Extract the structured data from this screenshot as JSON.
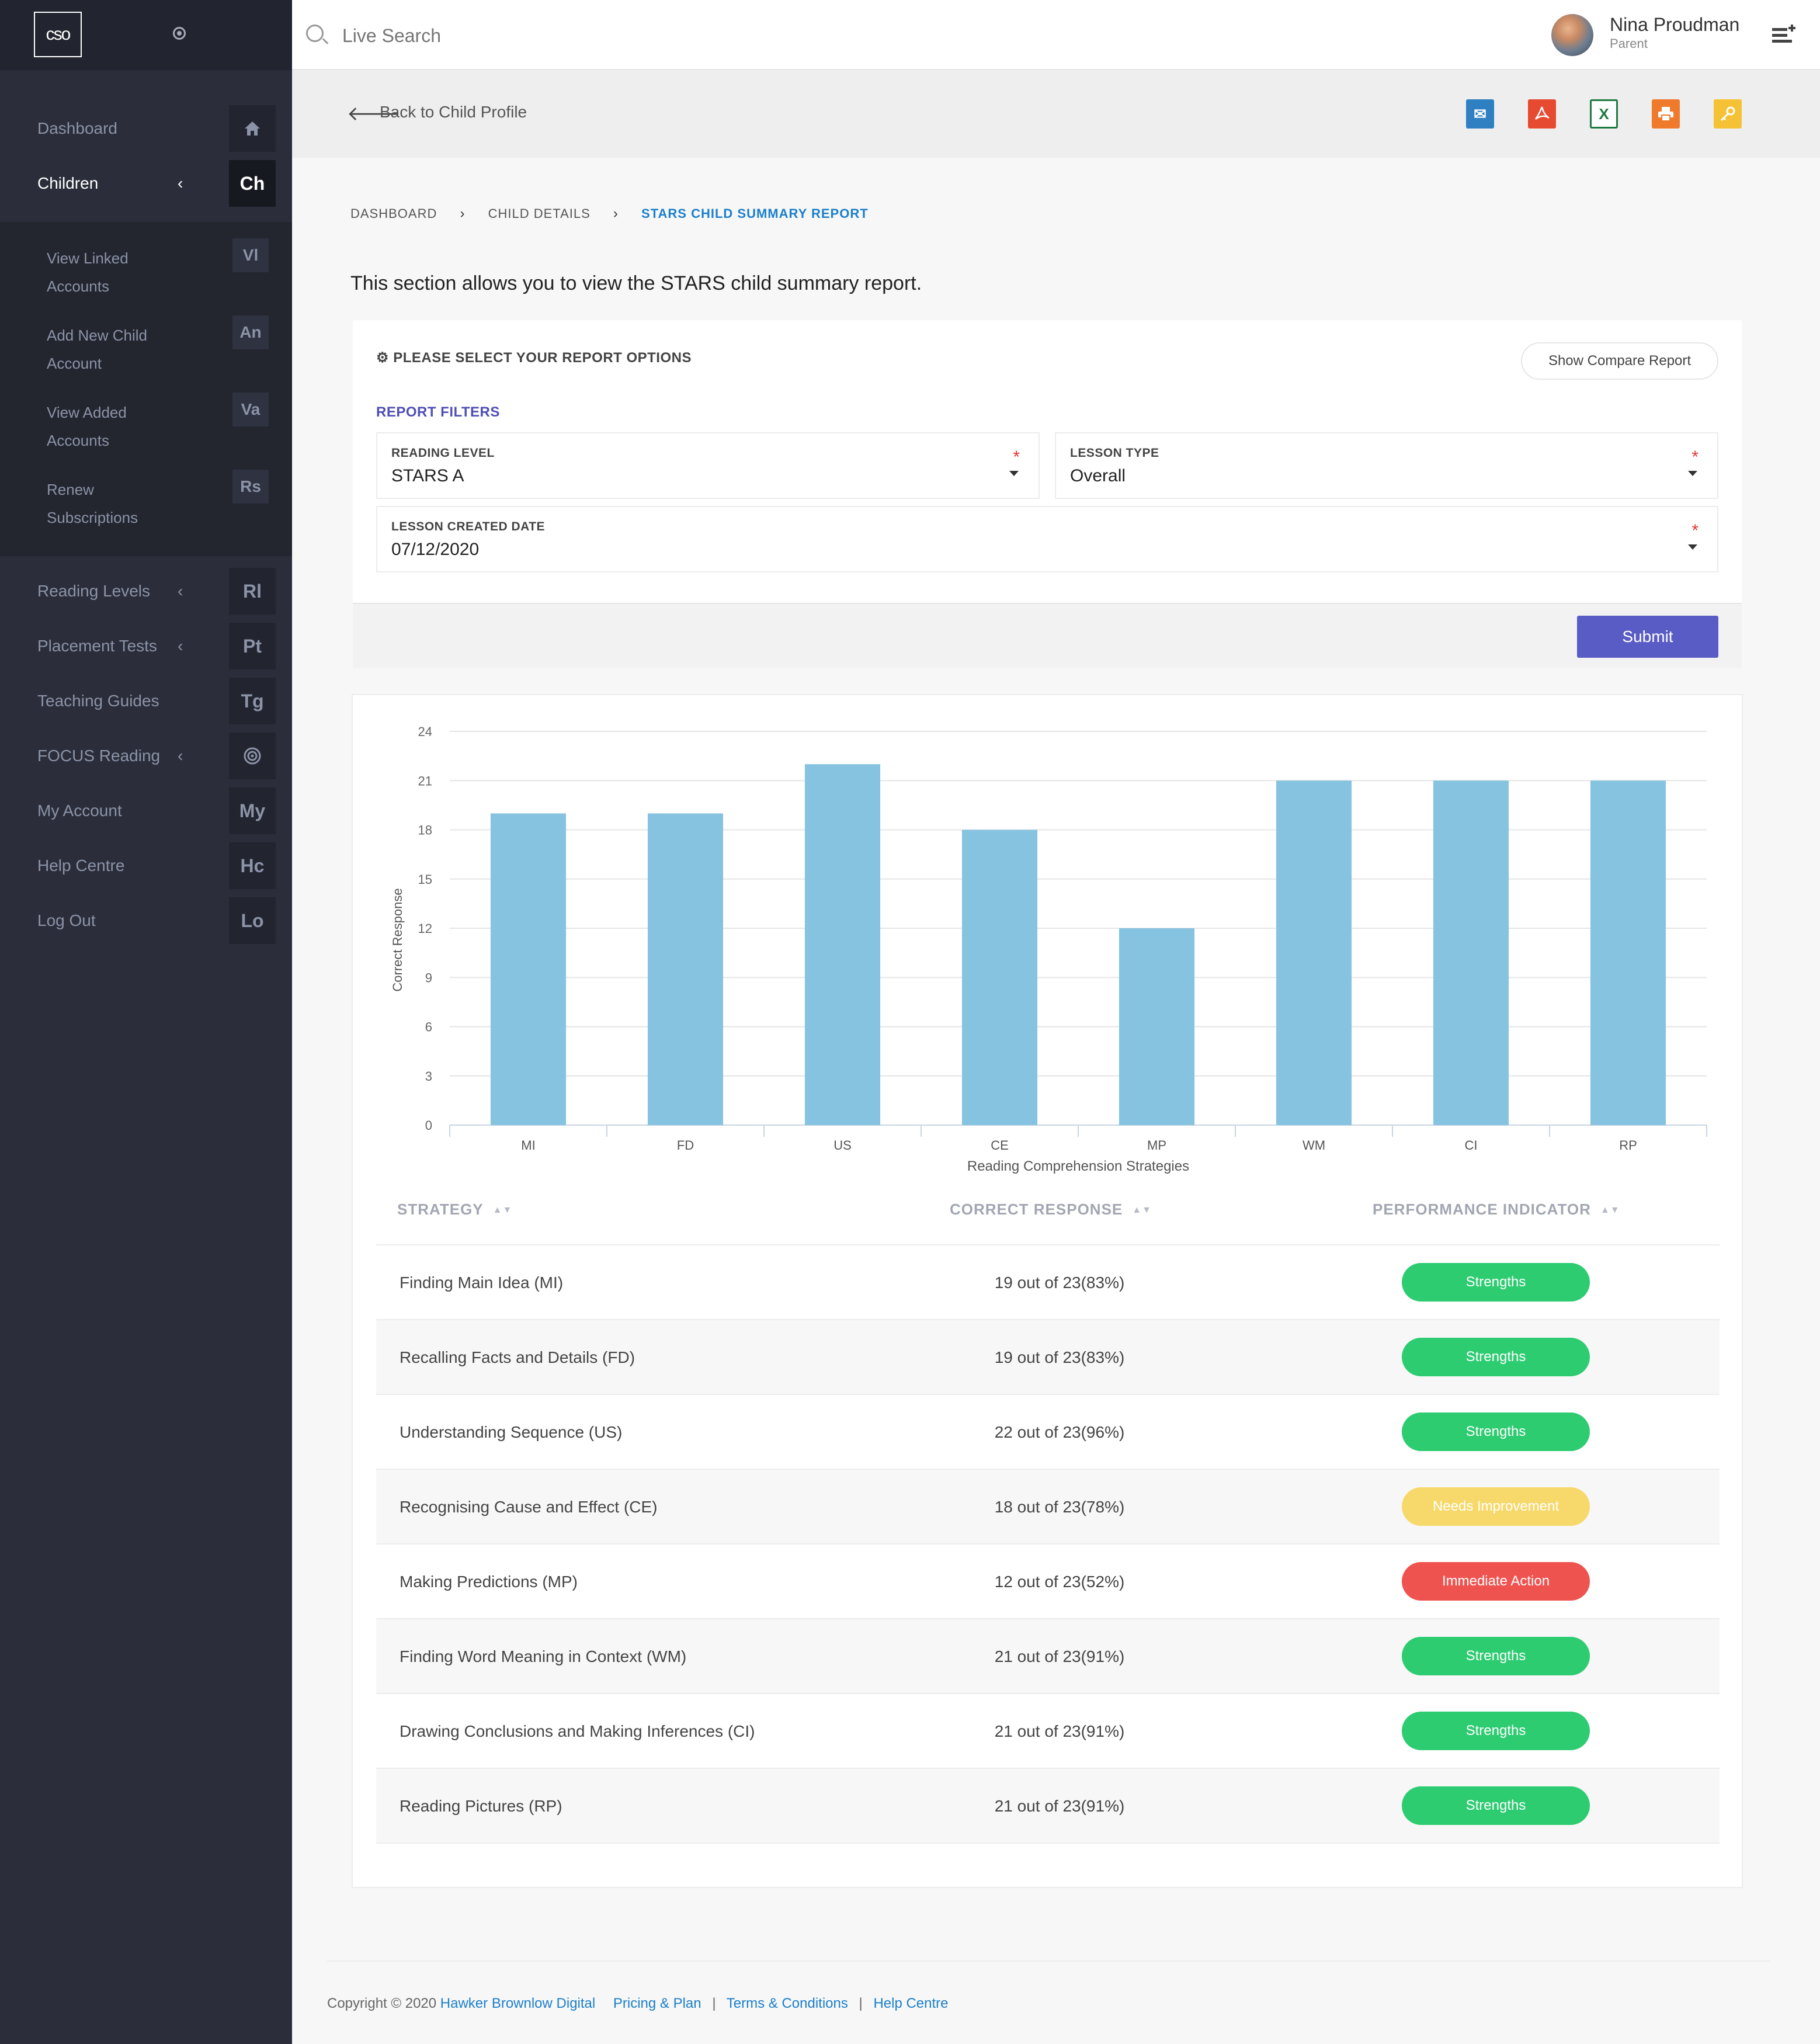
{
  "sidebar": {
    "logo": "cso",
    "nav": [
      {
        "label": "Dashboard",
        "badge": "",
        "chevron": false,
        "icon": "home-icon"
      },
      {
        "label": "Children",
        "badge": "Ch",
        "chevron": true,
        "active": true
      },
      {
        "label": "Reading Levels",
        "badge": "Rl",
        "chevron": true
      },
      {
        "label": "Placement Tests",
        "badge": "Pt",
        "chevron": true
      },
      {
        "label": "Teaching Guides",
        "badge": "Tg",
        "chevron": false
      },
      {
        "label": "FOCUS Reading",
        "badge": "",
        "chevron": true,
        "icon": "target-icon"
      },
      {
        "label": "My Account",
        "badge": "My",
        "chevron": false
      },
      {
        "label": "Help Centre",
        "badge": "Hc",
        "chevron": false
      },
      {
        "label": "Log Out",
        "badge": "Lo",
        "chevron": false
      }
    ],
    "submenu": [
      {
        "label": "View Linked Accounts",
        "badge": "Vl"
      },
      {
        "label": "Add New Child Account",
        "badge": "An"
      },
      {
        "label": "View Added Accounts",
        "badge": "Va"
      },
      {
        "label": "Renew Subscriptions",
        "badge": "Rs"
      }
    ]
  },
  "topbar": {
    "search_placeholder": "Live Search",
    "user_name": "Nina Proudman",
    "user_role": "Parent"
  },
  "header": {
    "back_label": "Back to Child Profile",
    "export_icons": [
      {
        "name": "email-icon",
        "color": "#2f7fc3",
        "glyph": "✉"
      },
      {
        "name": "pdf-icon",
        "color": "#e64b32",
        "glyph": "⤧"
      },
      {
        "name": "excel-icon",
        "color": "#1e7a44",
        "glyph": "X"
      },
      {
        "name": "print-icon",
        "color": "#f07a2b",
        "glyph": "⎙"
      },
      {
        "name": "key-icon",
        "color": "#f5c236",
        "glyph": "⚷"
      }
    ]
  },
  "breadcrumb": {
    "items": [
      "DASHBOARD",
      "CHILD DETAILS",
      "STARS CHILD SUMMARY REPORT"
    ]
  },
  "intro": "This section allows you to view the STARS child summary report.",
  "options": {
    "title": "PLEASE SELECT YOUR REPORT OPTIONS",
    "compare_label": "Show Compare Report",
    "filters_label": "REPORT FILTERS",
    "reading_level": {
      "label": "READING LEVEL",
      "value": "STARS A"
    },
    "lesson_type": {
      "label": "LESSON TYPE",
      "value": "Overall"
    },
    "lesson_date": {
      "label": "LESSON CREATED DATE",
      "value": "07/12/2020"
    },
    "required_mark": "*",
    "submit_label": "Submit"
  },
  "chart_data": {
    "type": "bar",
    "categories": [
      "MI",
      "FD",
      "US",
      "CE",
      "MP",
      "WM",
      "CI",
      "RP"
    ],
    "values": [
      19,
      19,
      22,
      18,
      12,
      21,
      21,
      21
    ],
    "xlabel": "Reading Comprehension Strategies",
    "ylabel": "Correct Response",
    "ylim": [
      0,
      24
    ],
    "yticks": [
      0,
      3,
      6,
      9,
      12,
      15,
      18,
      21,
      24
    ],
    "grid": true,
    "bar_color": "#86c3e1"
  },
  "table": {
    "headers": {
      "strategy": "STRATEGY",
      "correct": "CORRECT RESPONSE",
      "indicator": "PERFORMANCE INDICATOR"
    },
    "rows": [
      {
        "strategy": "Finding Main Idea (MI)",
        "correct": "19 out of 23(83%)",
        "indicator": "Strengths",
        "color": "#2ecc71"
      },
      {
        "strategy": "Recalling Facts and Details (FD)",
        "correct": "19 out of 23(83%)",
        "indicator": "Strengths",
        "color": "#2ecc71"
      },
      {
        "strategy": "Understanding Sequence (US)",
        "correct": "22 out of 23(96%)",
        "indicator": "Strengths",
        "color": "#2ecc71"
      },
      {
        "strategy": "Recognising Cause and Effect (CE)",
        "correct": "18 out of 23(78%)",
        "indicator": "Needs Improvement",
        "color": "#f7d96b"
      },
      {
        "strategy": "Making Predictions (MP)",
        "correct": "12 out of 23(52%)",
        "indicator": "Immediate Action",
        "color": "#ef5350"
      },
      {
        "strategy": "Finding Word Meaning in Context (WM)",
        "correct": "21 out of 23(91%)",
        "indicator": "Strengths",
        "color": "#2ecc71"
      },
      {
        "strategy": "Drawing Conclusions and Making Inferences (CI)",
        "correct": "21 out of 23(91%)",
        "indicator": "Strengths",
        "color": "#2ecc71"
      },
      {
        "strategy": "Reading Pictures (RP)",
        "correct": "21 out of 23(91%)",
        "indicator": "Strengths",
        "color": "#2ecc71"
      }
    ]
  },
  "footer": {
    "copyright": "Copyright © 2020",
    "company": "Hawker Brownlow Digital",
    "links": [
      "Pricing & Plan",
      "Terms & Conditions",
      "Help Centre"
    ]
  }
}
